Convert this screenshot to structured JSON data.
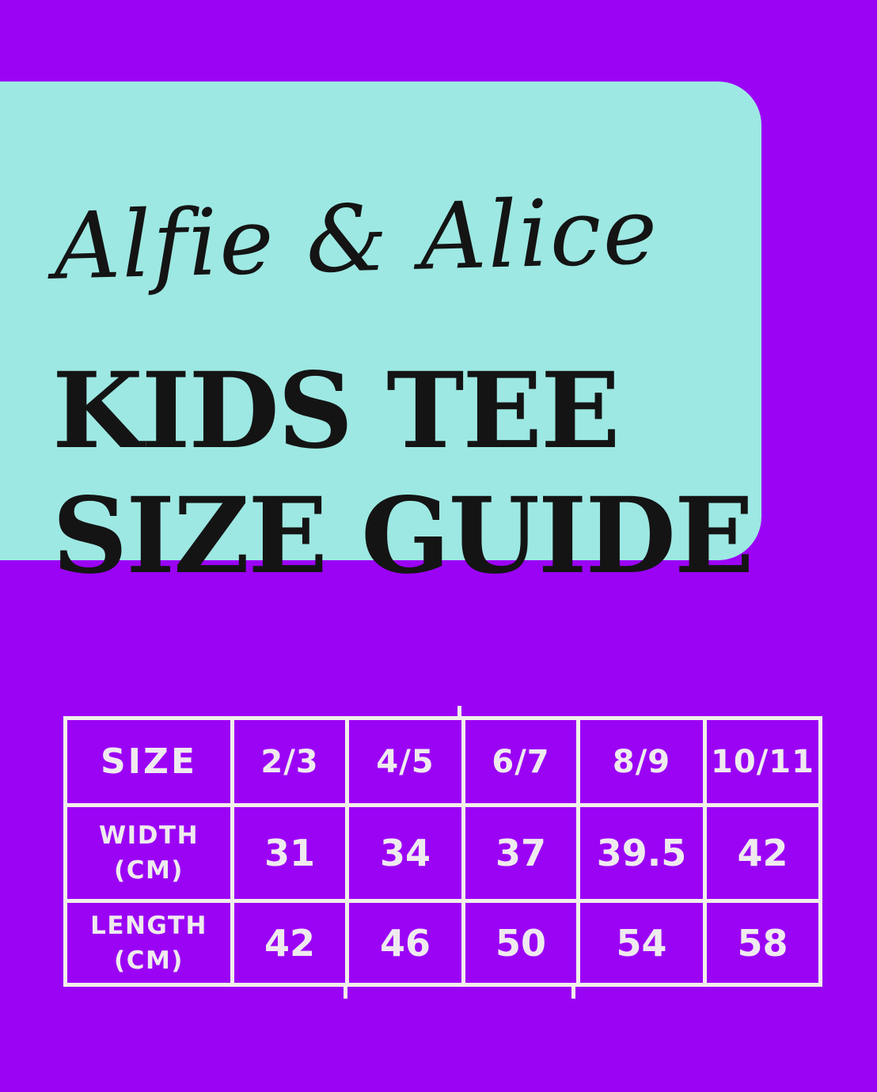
{
  "page": {
    "background_color": "#9b03f5"
  },
  "panel": {
    "background_color": "#9de8e3",
    "text_color": "#141414",
    "brand": "Alfie & Alice",
    "title_line1": "KIDS TEE",
    "title_line2": "SIZE GUIDE"
  },
  "size_table": {
    "line_color": "#f2efea",
    "text_color": "#efeaee",
    "headers": [
      "SIZE",
      "2/3",
      "4/5",
      "6/7",
      "8/9",
      "10/11"
    ],
    "rows": [
      {
        "label_line1": "WIDTH",
        "label_line2": "(CM)",
        "values": [
          "31",
          "34",
          "37",
          "39.5",
          "42"
        ]
      },
      {
        "label_line1": "LENGTH",
        "label_line2": "(CM)",
        "values": [
          "42",
          "46",
          "50",
          "54",
          "58"
        ]
      }
    ]
  },
  "chart_data": {
    "type": "table",
    "brand": "Alfie & Alice",
    "title": "KIDS TEE SIZE GUIDE",
    "columns": [
      "SIZE",
      "2/3",
      "4/5",
      "6/7",
      "8/9",
      "10/11"
    ],
    "rows": [
      [
        "WIDTH (CM)",
        31,
        34,
        37,
        39.5,
        42
      ],
      [
        "LENGTH (CM)",
        42,
        46,
        50,
        54,
        58
      ]
    ]
  }
}
